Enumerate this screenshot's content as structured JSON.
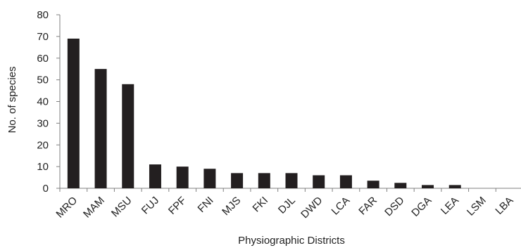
{
  "chart_data": {
    "type": "bar",
    "title": "",
    "xlabel": "Physiographic Districts",
    "ylabel": "No. of species",
    "ylim": [
      0,
      80
    ],
    "yticks": [
      0,
      10,
      20,
      30,
      40,
      50,
      60,
      70,
      80
    ],
    "grid": false,
    "legend": "none",
    "bar_color": "#231f20",
    "categories": [
      "MRO",
      "MAM",
      "MSU",
      "FUJ",
      "FPF",
      "FNI",
      "MJS",
      "FKI",
      "DJL",
      "DWD",
      "LCA",
      "FAR",
      "DSD",
      "DGA",
      "LEA",
      "LSM",
      "LBA"
    ],
    "values": [
      69,
      55,
      48,
      11,
      10,
      9,
      7,
      7,
      7,
      6,
      6,
      3.5,
      2.5,
      1.5,
      1.5,
      0,
      0
    ]
  }
}
